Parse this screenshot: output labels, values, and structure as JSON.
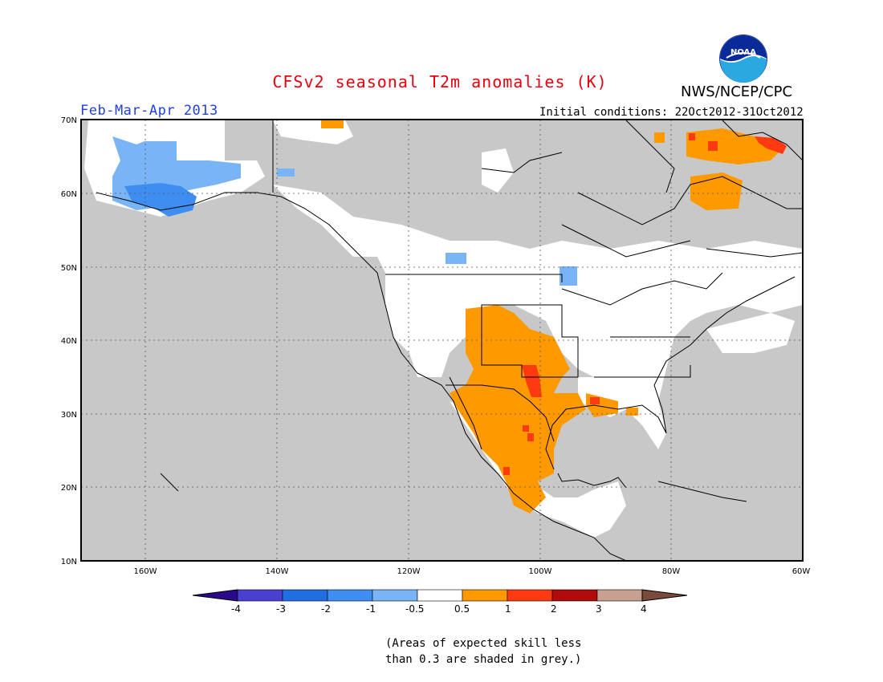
{
  "title": "CFSv2 seasonal T2m anomalies (K)",
  "period": "Feb-Mar-Apr 2013",
  "agency": "NWS/NCEP/CPC",
  "logo_text": "NOAA",
  "initial_conditions": "Initial conditions: 22Oct2012-31Oct2012",
  "note_line1": "(Areas of expected skill less",
  "note_line2": "than 0.3 are shaded in grey.)",
  "lat_labels": [
    "70N",
    "60N",
    "50N",
    "40N",
    "30N",
    "20N",
    "10N"
  ],
  "lon_labels": [
    "160W",
    "140W",
    "120W",
    "100W",
    "80W",
    "60W"
  ],
  "colorbar": {
    "ticks": [
      "-4",
      "-3",
      "-2",
      "-1",
      "-0.5",
      "0.5",
      "1",
      "2",
      "3",
      "4"
    ],
    "colors": [
      "#2b0a8a",
      "#4a40d0",
      "#1f6fe0",
      "#3d8ef0",
      "#78b4f6",
      "#ffffff",
      "#ff9900",
      "#ff3a10",
      "#b00a0a",
      "#c8a090",
      "#7a4a3a"
    ]
  },
  "colors": {
    "title": "#e8000f",
    "period": "#2040e0",
    "no_skill_grey": "#c8c8c8",
    "land": "#ffffff"
  }
}
